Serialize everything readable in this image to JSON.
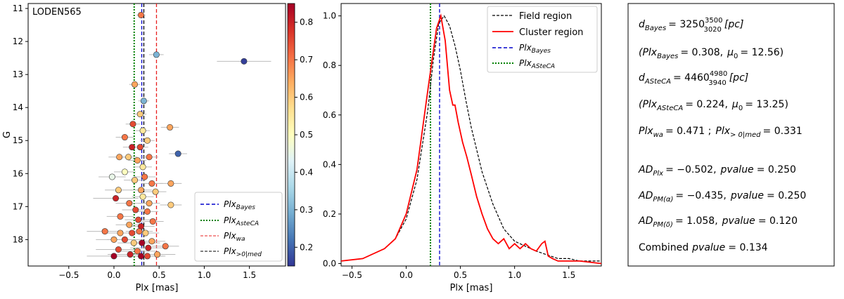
{
  "chart_data": [
    {
      "type": "scatter",
      "title": "LODEN565",
      "xlabel": "Plx [mas]",
      "ylabel": "G",
      "xlim": [
        -0.95,
        1.9
      ],
      "ylim": [
        18.8,
        10.85
      ],
      "x_ticks": [
        "−0.5",
        "0.0",
        "0.5",
        "1.0",
        "1.5"
      ],
      "x_tick_values": [
        -0.5,
        0.0,
        0.5,
        1.0,
        1.5
      ],
      "y_ticks": [
        "11",
        "12",
        "13",
        "14",
        "15",
        "16",
        "17",
        "18"
      ],
      "y_tick_values": [
        11,
        12,
        13,
        14,
        15,
        16,
        17,
        18
      ],
      "colorbar": {
        "range": [
          0.15,
          0.85
        ],
        "ticks": [
          "0.2",
          "0.3",
          "0.4",
          "0.5",
          "0.6",
          "0.7",
          "0.8"
        ],
        "tick_values": [
          0.2,
          0.3,
          0.4,
          0.5,
          0.6,
          0.7,
          0.8
        ],
        "colormap": [
          "#313695",
          "#4575b4",
          "#74add1",
          "#abd9e9",
          "#e0f3f8",
          "#ffffbf",
          "#fee090",
          "#fdae61",
          "#f46d43",
          "#d73027",
          "#a50026"
        ]
      },
      "points": [
        {
          "plx": 0.3,
          "g": 11.2,
          "c": 0.7,
          "err": 0.05
        },
        {
          "plx": 0.47,
          "g": 12.4,
          "c": 0.3,
          "err": 0.08
        },
        {
          "plx": 1.44,
          "g": 12.6,
          "c": 0.16,
          "err": 0.3
        },
        {
          "plx": 0.23,
          "g": 13.3,
          "c": 0.65,
          "err": 0.06
        },
        {
          "plx": 0.33,
          "g": 13.8,
          "c": 0.3,
          "err": 0.06
        },
        {
          "plx": 0.29,
          "g": 14.2,
          "c": 0.6,
          "err": 0.07
        },
        {
          "plx": 0.21,
          "g": 14.5,
          "c": 0.75,
          "err": 0.08
        },
        {
          "plx": 0.62,
          "g": 14.6,
          "c": 0.65,
          "err": 0.1
        },
        {
          "plx": 0.32,
          "g": 14.7,
          "c": 0.55,
          "err": 0.08
        },
        {
          "plx": 0.12,
          "g": 14.9,
          "c": 0.7,
          "err": 0.1
        },
        {
          "plx": 0.37,
          "g": 15.0,
          "c": 0.6,
          "err": 0.08
        },
        {
          "plx": 0.2,
          "g": 15.2,
          "c": 0.8,
          "err": 0.1
        },
        {
          "plx": 0.29,
          "g": 15.2,
          "c": 0.75,
          "err": 0.09
        },
        {
          "plx": 0.71,
          "g": 15.4,
          "c": 0.2,
          "err": 0.1
        },
        {
          "plx": 0.06,
          "g": 15.5,
          "c": 0.65,
          "err": 0.12
        },
        {
          "plx": 0.16,
          "g": 15.5,
          "c": 0.6,
          "err": 0.1
        },
        {
          "plx": 0.39,
          "g": 15.5,
          "c": 0.7,
          "err": 0.1
        },
        {
          "plx": 0.26,
          "g": 15.6,
          "c": 0.65,
          "err": 0.1
        },
        {
          "plx": 0.32,
          "g": 15.8,
          "c": 0.55,
          "err": 0.1
        },
        {
          "plx": 0.12,
          "g": 15.95,
          "c": 0.5,
          "err": 0.12
        },
        {
          "plx": -0.02,
          "g": 16.1,
          "c": 0.45,
          "err": 0.15
        },
        {
          "plx": 0.23,
          "g": 16.2,
          "c": 0.6,
          "err": 0.12
        },
        {
          "plx": 0.34,
          "g": 16.1,
          "c": 0.7,
          "err": 0.12
        },
        {
          "plx": 0.42,
          "g": 16.3,
          "c": 0.7,
          "err": 0.12
        },
        {
          "plx": 0.63,
          "g": 16.3,
          "c": 0.65,
          "err": 0.12
        },
        {
          "plx": 0.05,
          "g": 16.5,
          "c": 0.6,
          "err": 0.15
        },
        {
          "plx": 0.3,
          "g": 16.5,
          "c": 0.65,
          "err": 0.12
        },
        {
          "plx": 0.46,
          "g": 16.55,
          "c": 0.6,
          "err": 0.12
        },
        {
          "plx": 0.02,
          "g": 16.75,
          "c": 0.8,
          "err": 0.25
        },
        {
          "plx": 0.32,
          "g": 16.7,
          "c": 0.55,
          "err": 0.12
        },
        {
          "plx": 0.17,
          "g": 16.9,
          "c": 0.7,
          "err": 0.15
        },
        {
          "plx": 0.39,
          "g": 16.9,
          "c": 0.65,
          "err": 0.12
        },
        {
          "plx": 0.63,
          "g": 16.95,
          "c": 0.6,
          "err": 0.12
        },
        {
          "plx": 0.24,
          "g": 17.1,
          "c": 0.75,
          "err": 0.15
        },
        {
          "plx": 0.37,
          "g": 17.15,
          "c": 0.7,
          "err": 0.12
        },
        {
          "plx": 0.07,
          "g": 17.3,
          "c": 0.7,
          "err": 0.15
        },
        {
          "plx": 0.27,
          "g": 17.4,
          "c": 0.75,
          "err": 0.15
        },
        {
          "plx": 0.43,
          "g": 17.45,
          "c": 0.7,
          "err": 0.12
        },
        {
          "plx": 0.17,
          "g": 17.55,
          "c": 0.65,
          "err": 0.15
        },
        {
          "plx": 0.3,
          "g": 17.6,
          "c": 0.8,
          "err": 0.15
        },
        {
          "plx": -0.1,
          "g": 17.75,
          "c": 0.7,
          "err": 0.2
        },
        {
          "plx": 0.07,
          "g": 17.8,
          "c": 0.65,
          "err": 0.2
        },
        {
          "plx": 0.2,
          "g": 17.8,
          "c": 0.75,
          "err": 0.18
        },
        {
          "plx": 0.28,
          "g": 17.75,
          "c": 0.7,
          "err": 0.15
        },
        {
          "plx": 0.35,
          "g": 17.8,
          "c": 0.6,
          "err": 0.15
        },
        {
          "plx": 0.0,
          "g": 18.0,
          "c": 0.65,
          "err": 0.2
        },
        {
          "plx": 0.12,
          "g": 18.0,
          "c": 0.75,
          "err": 0.2
        },
        {
          "plx": 0.22,
          "g": 18.1,
          "c": 0.6,
          "err": 0.18
        },
        {
          "plx": 0.31,
          "g": 18.1,
          "c": 0.85,
          "err": 0.2
        },
        {
          "plx": 0.42,
          "g": 18.05,
          "c": 0.65,
          "err": 0.15
        },
        {
          "plx": 0.05,
          "g": 18.3,
          "c": 0.75,
          "err": 0.25
        },
        {
          "plx": 0.26,
          "g": 18.35,
          "c": 0.7,
          "err": 0.2
        },
        {
          "plx": 0.38,
          "g": 18.25,
          "c": 0.8,
          "err": 0.2
        },
        {
          "plx": 0.57,
          "g": 18.2,
          "c": 0.7,
          "err": 0.15
        },
        {
          "plx": 0.0,
          "g": 18.5,
          "c": 0.85,
          "err": 0.3
        },
        {
          "plx": 0.18,
          "g": 18.45,
          "c": 0.8,
          "err": 0.25
        },
        {
          "plx": 0.3,
          "g": 18.5,
          "c": 0.85,
          "err": 0.25
        },
        {
          "plx": 0.37,
          "g": 18.5,
          "c": 0.75,
          "err": 0.2
        },
        {
          "plx": 0.48,
          "g": 18.45,
          "c": 0.65,
          "err": 0.2
        }
      ],
      "lines": [
        {
          "label": "Plx_Bayes",
          "x": 0.308,
          "color": "#0000cc",
          "style": "dashed"
        },
        {
          "label": "Plx_AsteCA",
          "x": 0.224,
          "color": "#008000",
          "style": "dotted"
        },
        {
          "label": "Plx_wa",
          "x": 0.471,
          "color": "#e82020",
          "style": "dashed"
        },
        {
          "label": "Plx_>0|med",
          "x": 0.331,
          "color": "#000000",
          "style": "dashed"
        }
      ],
      "legend_position": "lower-right"
    },
    {
      "type": "line",
      "title": "",
      "xlabel": "Plx [mas]",
      "ylabel": "",
      "xlim": [
        -0.6,
        1.8
      ],
      "ylim": [
        -0.01,
        1.05
      ],
      "x_ticks": [
        "−0.5",
        "0.0",
        "0.5",
        "1.0",
        "1.5"
      ],
      "x_tick_values": [
        -0.5,
        0.0,
        0.5,
        1.0,
        1.5
      ],
      "y_ticks": [
        "0.0",
        "0.2",
        "0.4",
        "0.6",
        "0.8",
        "1.0"
      ],
      "y_tick_values": [
        0.0,
        0.2,
        0.4,
        0.6,
        0.8,
        1.0
      ],
      "series": [
        {
          "name": "Field region",
          "color": "#000000",
          "style": "dashed",
          "x": [
            -0.6,
            -0.4,
            -0.2,
            -0.1,
            0.0,
            0.1,
            0.2,
            0.25,
            0.3,
            0.35,
            0.4,
            0.45,
            0.5,
            0.55,
            0.6,
            0.7,
            0.8,
            0.9,
            1.0,
            1.1,
            1.2,
            1.3,
            1.4,
            1.5,
            1.6,
            1.8
          ],
          "y": [
            0.01,
            0.02,
            0.06,
            0.1,
            0.18,
            0.34,
            0.62,
            0.82,
            0.97,
            1.0,
            0.96,
            0.88,
            0.78,
            0.66,
            0.55,
            0.37,
            0.24,
            0.14,
            0.09,
            0.07,
            0.05,
            0.035,
            0.02,
            0.02,
            0.01,
            0.01
          ]
        },
        {
          "name": "Cluster region",
          "color": "#ff0000",
          "style": "solid",
          "x": [
            -0.6,
            -0.4,
            -0.2,
            -0.1,
            0.0,
            0.1,
            0.2,
            0.28,
            0.32,
            0.36,
            0.4,
            0.43,
            0.45,
            0.48,
            0.52,
            0.56,
            0.6,
            0.65,
            0.7,
            0.75,
            0.8,
            0.85,
            0.9,
            0.95,
            1.0,
            1.05,
            1.1,
            1.15,
            1.2,
            1.25,
            1.28,
            1.31,
            1.35,
            1.4,
            1.5,
            1.6,
            1.8
          ],
          "y": [
            0.01,
            0.02,
            0.06,
            0.1,
            0.2,
            0.38,
            0.7,
            0.95,
            1.0,
            0.9,
            0.7,
            0.64,
            0.64,
            0.57,
            0.49,
            0.43,
            0.36,
            0.27,
            0.2,
            0.14,
            0.1,
            0.08,
            0.1,
            0.06,
            0.08,
            0.06,
            0.08,
            0.06,
            0.05,
            0.08,
            0.09,
            0.03,
            0.02,
            0.01,
            0.01,
            0.01,
            0.0
          ]
        }
      ],
      "lines": [
        {
          "label": "Plx_Bayes",
          "x": 0.308,
          "color": "#0000cc",
          "style": "dashed"
        },
        {
          "label": "Plx_ASteCA",
          "x": 0.224,
          "color": "#008000",
          "style": "dotted"
        }
      ],
      "legend_position": "top-right"
    }
  ],
  "left_panel": {
    "title": "LODEN565",
    "legend": {
      "bayes": {
        "base": "Plx",
        "sub": "Bayes"
      },
      "asteca": {
        "base": "Plx",
        "sub": "AsteCA"
      },
      "wa": {
        "base": "Plx",
        "sub": "wa"
      },
      "med": {
        "base": "Plx",
        "sub": ">0|med"
      }
    }
  },
  "right_panel": {
    "legend": {
      "field": "Field region",
      "cluster": "Cluster region",
      "bayes": {
        "base": "Plx",
        "sub": "Bayes"
      },
      "asteca": {
        "base": "Plx",
        "sub": "ASteCA"
      }
    }
  },
  "info_box": {
    "d_bayes_label": "d",
    "d_bayes_sub": "Bayes",
    "d_bayes_val": "3250",
    "d_bayes_sup": "3500",
    "d_bayes_low": "3020",
    "d_unit": "[pc]",
    "plx_bayes_text": "(Plx",
    "plx_bayes_sub": "Bayes",
    "plx_bayes_val": "= 0.308,",
    "mu_label": "μ",
    "mu_sub": "0",
    "mu_bayes_val": "= 12.56)",
    "d_asteca_label": "d",
    "d_asteca_sub": "ASteCA",
    "d_asteca_val": "4460",
    "d_asteca_sup": "4980",
    "d_asteca_low": "3940",
    "plx_asteca_text": "(Plx",
    "plx_asteca_sub": "ASteCA",
    "plx_asteca_val": "= 0.224,",
    "mu_asteca_val": "= 13.25)",
    "plx_wa_label": "Plx",
    "plx_wa_sub": "wa",
    "plx_wa_val": "= 0.471 ;",
    "plx_med_label": "Plx",
    "plx_med_sub": "> 0|med",
    "plx_med_val": "= 0.331",
    "ad1_label": "AD",
    "ad1_sub": "Plx",
    "ad1_val": "= −0.502,",
    "pvalue_label": "pvalue",
    "ad1_p": "= 0.250",
    "ad2_label": "AD",
    "ad2_sub": "PM(α)",
    "ad2_val": "= −0.435,",
    "ad2_p": "= 0.250",
    "ad3_label": "AD",
    "ad3_sub": "PM(δ)",
    "ad3_val": "= 1.058,",
    "ad3_p": "= 0.120",
    "combined_label": "Combined",
    "combined_p": "= 0.134"
  }
}
